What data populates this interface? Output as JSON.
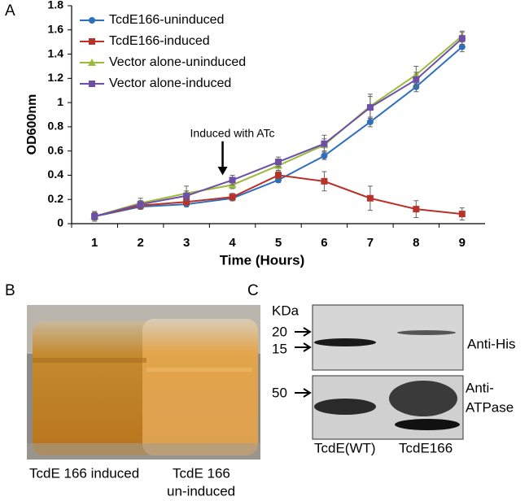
{
  "chart_data": {
    "type": "line",
    "x_label": "Time (Hours)",
    "y_label": "OD600nm",
    "categories": [
      "1",
      "2",
      "3",
      "4",
      "5",
      "6",
      "7",
      "8",
      "9"
    ],
    "ylim": [
      0,
      1.8
    ],
    "yticks": [
      0,
      0.2,
      0.4,
      0.6,
      0.8,
      1,
      1.2,
      1.4,
      1.6,
      1.8
    ],
    "grid": false,
    "legend": "upper left",
    "annotation": {
      "text": "Induced with ATc",
      "category": 3
    },
    "series": [
      {
        "name": "TcdE166-uninduced",
        "color": "#2f6fba",
        "marker": "circle",
        "values": [
          0.06,
          0.14,
          0.16,
          0.21,
          0.36,
          0.56,
          0.84,
          1.13,
          1.46
        ],
        "errors": [
          0.03,
          0.02,
          0.02,
          0.02,
          0.02,
          0.03,
          0.04,
          0.04,
          0.04
        ]
      },
      {
        "name": "TcdE166-induced",
        "color": "#b8322a",
        "marker": "square",
        "values": [
          0.06,
          0.15,
          0.18,
          0.22,
          0.4,
          0.35,
          0.21,
          0.12,
          0.08
        ],
        "errors": [
          0.04,
          0.03,
          0.03,
          0.03,
          0.03,
          0.08,
          0.1,
          0.07,
          0.05
        ]
      },
      {
        "name": "Vector alone-uninduced",
        "color": "#9bbb3c",
        "marker": "triangle",
        "values": [
          0.06,
          0.17,
          0.25,
          0.32,
          0.48,
          0.65,
          0.97,
          1.23,
          1.55
        ],
        "errors": [
          0.04,
          0.04,
          0.06,
          0.03,
          0.04,
          0.05,
          0.1,
          0.07,
          0.04
        ]
      },
      {
        "name": "Vector alone-induced",
        "color": "#6e4fa6",
        "marker": "square",
        "values": [
          0.06,
          0.16,
          0.23,
          0.36,
          0.51,
          0.66,
          0.96,
          1.19,
          1.53
        ],
        "errors": [
          0.03,
          0.03,
          0.04,
          0.04,
          0.04,
          0.07,
          0.09,
          0.06,
          0.05
        ]
      }
    ]
  },
  "panels": {
    "a": "A",
    "b": "B",
    "c": "C"
  },
  "photo": {
    "caption_left": "TcdE 166 induced",
    "caption_right": [
      "TcdE 166",
      "un-induced"
    ]
  },
  "blot": {
    "unit": "KDa",
    "markers": [
      "20",
      "15",
      "50"
    ],
    "antibodies": [
      "Anti-His",
      "Anti-",
      "ATPase"
    ],
    "lanes": [
      "TcdE(WT)",
      "TcdE166"
    ]
  }
}
